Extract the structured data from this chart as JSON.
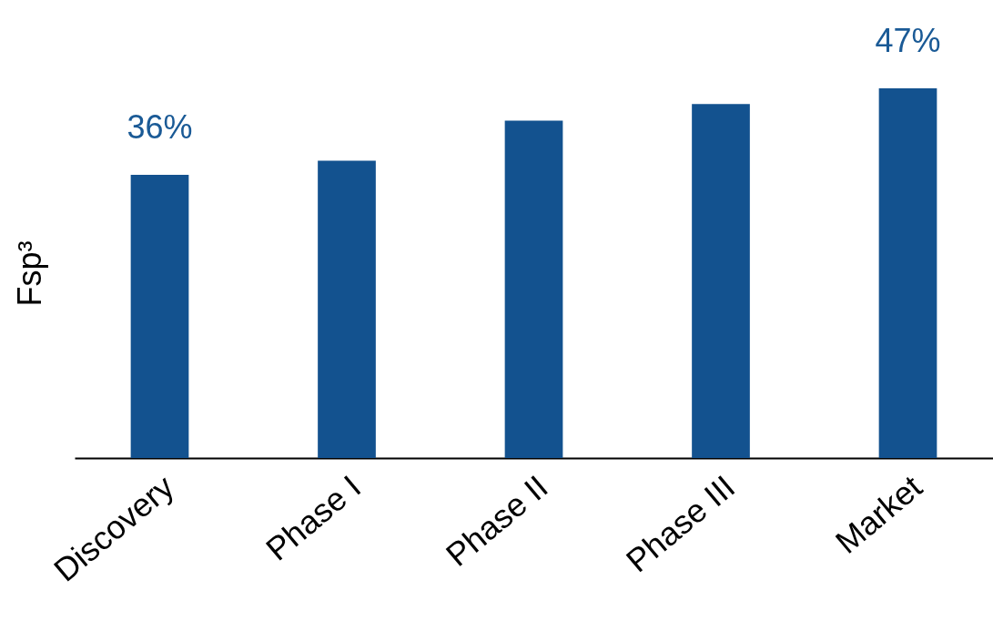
{
  "chart_data": {
    "type": "bar",
    "ylabel": "Fsp³",
    "categories": [
      "Discovery",
      "Phase I",
      "Phase II",
      "Phase III",
      "Market"
    ],
    "values": [
      36,
      37.8,
      42.9,
      45,
      47
    ],
    "value_labels": [
      "36%",
      null,
      null,
      null,
      "47%"
    ],
    "color": "#13528f",
    "tick_labels": "x",
    "grid": false
  }
}
